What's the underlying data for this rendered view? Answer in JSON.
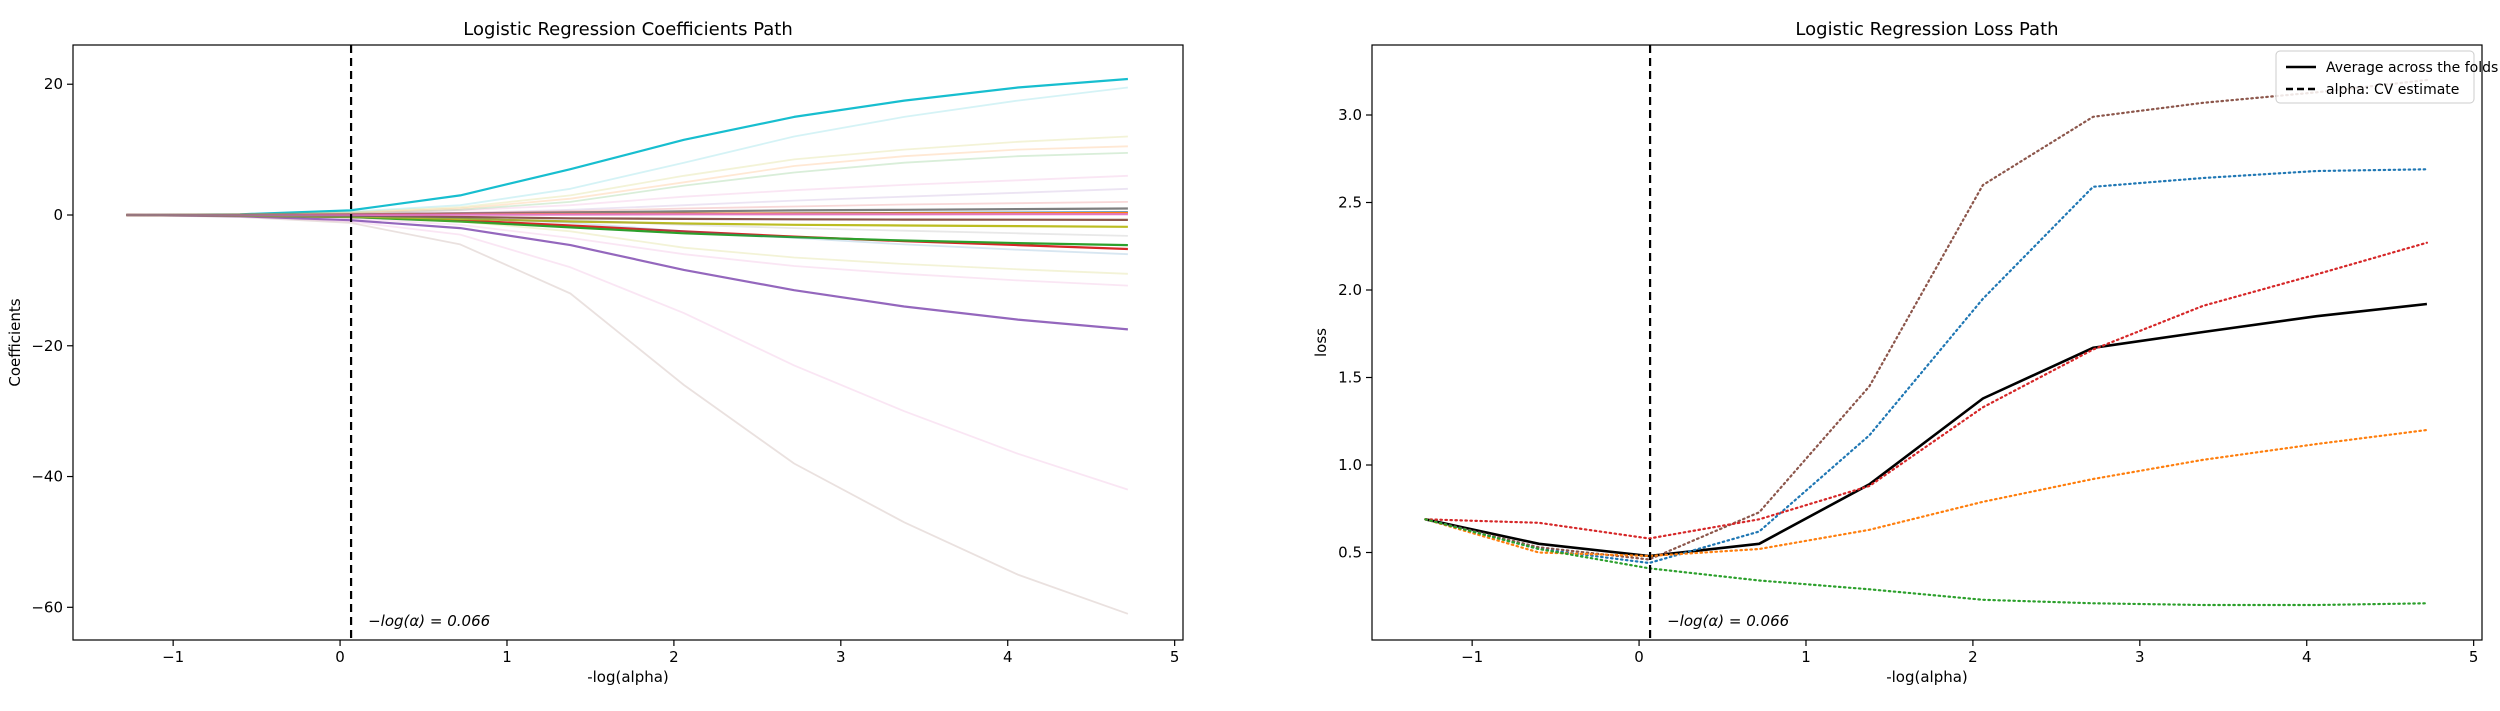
{
  "colors": {
    "blue": "#1f77b4",
    "orange": "#ff7f0e",
    "green": "#2ca02c",
    "red": "#d62728",
    "purple": "#9467bd",
    "brown": "#8c564b",
    "pink": "#e377c2",
    "gray": "#7f7f7f",
    "olive": "#bcbd22",
    "cyan": "#17becf",
    "black": "#000000"
  },
  "chart_data": [
    {
      "type": "line",
      "title": "Logistic Regression Coefficients Path",
      "xlabel": "-log(alpha)",
      "ylabel": "Coefficients",
      "xlim": [
        -1.6,
        5.05
      ],
      "ylim": [
        -65,
        26
      ],
      "xticks": [
        -1,
        0,
        1,
        2,
        3,
        4,
        5
      ],
      "yticks": [
        -60,
        -40,
        -20,
        0,
        20
      ],
      "x": [
        -1.28,
        -0.6,
        0.06,
        0.72,
        1.38,
        2.06,
        2.72,
        3.38,
        4.06,
        4.72
      ],
      "vline": {
        "x": 0.066,
        "label": "−log(α) = 0.066"
      },
      "series": [
        {
          "color": "#17becf",
          "alpha": 1.0,
          "values": [
            0,
            0.1,
            0.7,
            3.0,
            7.0,
            11.5,
            15.0,
            17.5,
            19.5,
            20.8
          ]
        },
        {
          "color": "#9467bd",
          "alpha": 1.0,
          "values": [
            0,
            -0.2,
            -0.8,
            -2.0,
            -4.6,
            -8.4,
            -11.5,
            -14.0,
            -16.0,
            -17.5
          ]
        },
        {
          "color": "#d62728",
          "alpha": 1.0,
          "values": [
            0,
            -0.1,
            -0.3,
            -0.8,
            -1.6,
            -2.5,
            -3.3,
            -4.0,
            -4.6,
            -5.2
          ]
        },
        {
          "color": "#2ca02c",
          "alpha": 1.0,
          "values": [
            0,
            -0.1,
            -0.3,
            -1.0,
            -1.9,
            -2.8,
            -3.4,
            -3.9,
            -4.3,
            -4.6
          ]
        },
        {
          "color": "#bcbd22",
          "alpha": 1.0,
          "values": [
            0,
            -0.05,
            -0.2,
            -0.6,
            -1.0,
            -1.3,
            -1.5,
            -1.6,
            -1.7,
            -1.8
          ]
        },
        {
          "color": "#8c564b",
          "alpha": 1.0,
          "values": [
            0,
            -0.02,
            -0.1,
            -0.3,
            -0.5,
            -0.6,
            -0.65,
            -0.7,
            -0.72,
            -0.75
          ]
        },
        {
          "color": "#7f7f7f",
          "alpha": 1.0,
          "values": [
            0,
            0.02,
            0.1,
            0.25,
            0.4,
            0.55,
            0.7,
            0.8,
            0.9,
            1.0
          ]
        },
        {
          "color": "#1f77b4",
          "alpha": 1.0,
          "values": [
            0,
            0.0,
            0.05,
            0.1,
            0.15,
            0.2,
            0.25,
            0.3,
            0.35,
            0.4
          ]
        },
        {
          "color": "#ff7f0e",
          "alpha": 1.0,
          "values": [
            0,
            0.01,
            0.05,
            0.1,
            0.15,
            0.2,
            0.22,
            0.25,
            0.28,
            0.3
          ]
        },
        {
          "color": "#e377c2",
          "alpha": 1.0,
          "values": [
            0,
            0.0,
            0.02,
            0.05,
            0.08,
            0.1,
            0.1,
            0.1,
            0.12,
            0.12
          ]
        },
        {
          "color": "#8c564b",
          "alpha": 0.18,
          "values": [
            0,
            -0.3,
            -1.2,
            -4.5,
            -12.0,
            -26.0,
            -38.0,
            -47.0,
            -55.0,
            -61.0
          ]
        },
        {
          "color": "#e377c2",
          "alpha": 0.18,
          "values": [
            0,
            -0.2,
            -1.0,
            -3.0,
            -8.0,
            -15.0,
            -23.0,
            -30.0,
            -36.5,
            -42.0
          ]
        },
        {
          "color": "#e377c2",
          "alpha": 0.18,
          "values": [
            0,
            -0.1,
            -0.5,
            -1.5,
            -3.5,
            -6.0,
            -7.8,
            -9.0,
            -10.0,
            -10.8
          ]
        },
        {
          "color": "#bcbd22",
          "alpha": 0.18,
          "values": [
            0,
            -0.1,
            -0.3,
            -1.0,
            -2.5,
            -5.0,
            -6.5,
            -7.5,
            -8.3,
            -9.0
          ]
        },
        {
          "color": "#17becf",
          "alpha": 0.18,
          "values": [
            0,
            0.1,
            0.5,
            1.5,
            4.0,
            8.0,
            12.0,
            15.0,
            17.5,
            19.5
          ]
        },
        {
          "color": "#bcbd22",
          "alpha": 0.18,
          "values": [
            0,
            0.1,
            0.4,
            1.2,
            3.0,
            6.0,
            8.5,
            10.0,
            11.2,
            12.0
          ]
        },
        {
          "color": "#ff7f0e",
          "alpha": 0.18,
          "values": [
            0,
            0.1,
            0.3,
            1.0,
            2.5,
            5.0,
            7.5,
            9.0,
            10.0,
            10.5
          ]
        },
        {
          "color": "#2ca02c",
          "alpha": 0.18,
          "values": [
            0,
            0.05,
            0.2,
            0.8,
            2.0,
            4.5,
            6.5,
            8.0,
            9.0,
            9.5
          ]
        },
        {
          "color": "#e377c2",
          "alpha": 0.18,
          "values": [
            0,
            0.05,
            0.2,
            0.7,
            1.5,
            2.8,
            3.8,
            4.6,
            5.3,
            6.0
          ]
        },
        {
          "color": "#9467bd",
          "alpha": 0.18,
          "values": [
            0,
            0.02,
            0.1,
            0.3,
            0.8,
            1.5,
            2.2,
            2.8,
            3.4,
            4.0
          ]
        },
        {
          "color": "#d62728",
          "alpha": 0.18,
          "values": [
            0,
            0.02,
            0.1,
            0.3,
            0.6,
            1.0,
            1.3,
            1.6,
            1.8,
            2.0
          ]
        },
        {
          "color": "#1f77b4",
          "alpha": 0.18,
          "values": [
            0,
            -0.05,
            -0.2,
            -0.5,
            -1.2,
            -2.5,
            -3.5,
            -4.5,
            -5.3,
            -6.0
          ]
        },
        {
          "color": "#7f7f7f",
          "alpha": 0.18,
          "values": [
            0,
            -0.05,
            -0.15,
            -0.4,
            -0.8,
            -1.5,
            -2.0,
            -2.4,
            -2.8,
            -3.2
          ]
        }
      ]
    },
    {
      "type": "line",
      "title": "Logistic Regression Loss Path",
      "xlabel": "-log(alpha)",
      "ylabel": "loss",
      "xlim": [
        -1.6,
        5.05
      ],
      "ylim": [
        0.0,
        3.4
      ],
      "xticks": [
        -1,
        0,
        1,
        2,
        3,
        4,
        5
      ],
      "yticks": [
        0.5,
        1.0,
        1.5,
        2.0,
        2.5,
        3.0
      ],
      "x": [
        -1.28,
        -0.6,
        0.06,
        0.72,
        1.38,
        2.06,
        2.72,
        3.38,
        4.06,
        4.72
      ],
      "vline": {
        "x": 0.066,
        "label": "−log(α) = 0.066"
      },
      "legend": {
        "position": "upper right",
        "entries": [
          "Average across the folds",
          "alpha: CV estimate"
        ]
      },
      "series": [
        {
          "name": "Average across the folds",
          "color": "#000000",
          "style": "solid",
          "values": [
            0.69,
            0.55,
            0.48,
            0.55,
            0.89,
            1.38,
            1.67,
            1.76,
            1.85,
            1.92
          ]
        },
        {
          "color": "#8c564b",
          "style": "dotted",
          "values": [
            0.69,
            0.53,
            0.46,
            0.73,
            1.45,
            2.6,
            2.99,
            3.07,
            3.13,
            3.2
          ]
        },
        {
          "color": "#1f77b4",
          "style": "dotted",
          "values": [
            0.69,
            0.52,
            0.44,
            0.62,
            1.17,
            1.95,
            2.59,
            2.64,
            2.68,
            2.69
          ]
        },
        {
          "color": "#d62728",
          "style": "dotted",
          "values": [
            0.69,
            0.67,
            0.58,
            0.69,
            0.88,
            1.33,
            1.66,
            1.91,
            2.09,
            2.27
          ]
        },
        {
          "color": "#ff7f0e",
          "style": "dotted",
          "values": [
            0.69,
            0.5,
            0.48,
            0.52,
            0.63,
            0.79,
            0.92,
            1.03,
            1.12,
            1.2
          ]
        },
        {
          "color": "#2ca02c",
          "style": "dotted",
          "values": [
            0.69,
            0.52,
            0.41,
            0.34,
            0.29,
            0.23,
            0.21,
            0.2,
            0.2,
            0.21
          ]
        }
      ]
    }
  ]
}
